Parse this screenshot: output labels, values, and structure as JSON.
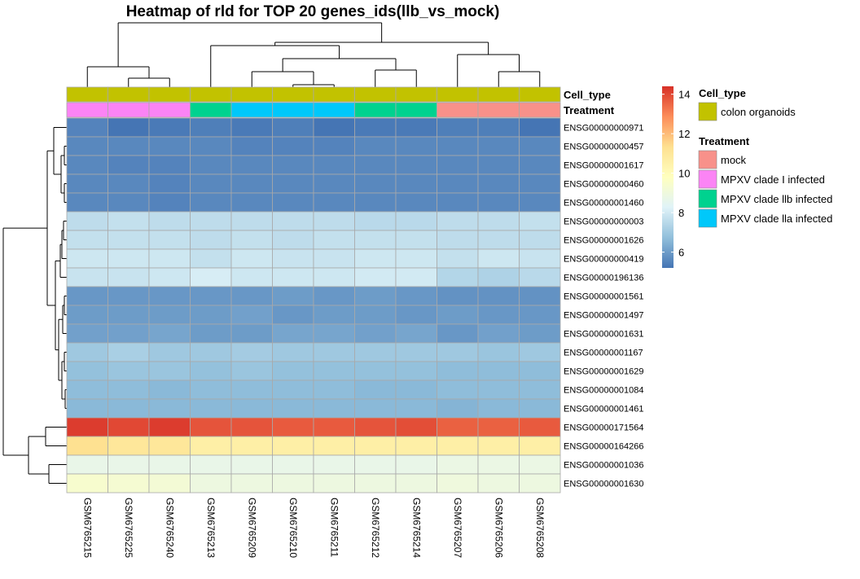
{
  "chart_data": {
    "type": "heatmap",
    "title": "Heatmap of rld for TOP 20 genes_ids(llb_vs_mock)",
    "columns": [
      "GSM6765215",
      "GSM6765225",
      "GSM6765240",
      "GSM6765213",
      "GSM6765209",
      "GSM6765210",
      "GSM6765211",
      "GSM6765212",
      "GSM6765214",
      "GSM6765207",
      "GSM6765206",
      "GSM6765208"
    ],
    "rows": [
      "ENSG00000000971",
      "ENSG00000000457",
      "ENSG00000001617",
      "ENSG00000000460",
      "ENSG00000001460",
      "ENSG00000000003",
      "ENSG00000001626",
      "ENSG00000000419",
      "ENSG00000196136",
      "ENSG00000001561",
      "ENSG00000001497",
      "ENSG00000001631",
      "ENSG00000001167",
      "ENSG00000001629",
      "ENSG00000001084",
      "ENSG00000001461",
      "ENSG00000171564",
      "ENSG00000164266",
      "ENSG00000001036",
      "ENSG00000001630"
    ],
    "values": [
      [
        5.5,
        5.2,
        5.3,
        5.4,
        5.3,
        5.4,
        5.2,
        5.3,
        5.3,
        5.4,
        5.4,
        5.2
      ],
      [
        5.6,
        5.6,
        5.6,
        5.6,
        5.5,
        5.5,
        5.5,
        5.6,
        5.6,
        5.6,
        5.6,
        5.6
      ],
      [
        5.6,
        5.5,
        5.5,
        5.6,
        5.6,
        5.6,
        5.6,
        5.6,
        5.6,
        5.6,
        5.6,
        5.6
      ],
      [
        5.6,
        5.6,
        5.5,
        5.6,
        5.6,
        5.6,
        5.6,
        5.6,
        5.6,
        5.6,
        5.6,
        5.6
      ],
      [
        5.6,
        5.6,
        5.5,
        5.6,
        5.6,
        5.6,
        5.6,
        5.6,
        5.6,
        5.6,
        5.6,
        5.6
      ],
      [
        7.6,
        7.7,
        7.6,
        7.6,
        7.6,
        7.6,
        7.6,
        7.5,
        7.5,
        7.6,
        7.6,
        7.7
      ],
      [
        7.7,
        7.7,
        7.7,
        7.6,
        7.7,
        7.6,
        7.7,
        7.7,
        7.7,
        7.6,
        7.6,
        7.6
      ],
      [
        7.9,
        7.9,
        7.9,
        7.7,
        7.9,
        7.8,
        7.8,
        7.9,
        7.9,
        7.7,
        7.9,
        7.8
      ],
      [
        7.8,
        7.8,
        7.9,
        8.1,
        7.9,
        7.9,
        7.9,
        8.0,
        8.0,
        7.4,
        7.3,
        7.5
      ],
      [
        5.9,
        5.9,
        5.9,
        5.9,
        5.9,
        6.0,
        5.9,
        6.0,
        5.9,
        5.8,
        5.8,
        5.8
      ],
      [
        6.0,
        6.0,
        6.0,
        6.0,
        6.1,
        5.9,
        6.0,
        6.0,
        5.9,
        6.0,
        5.9,
        5.9
      ],
      [
        6.1,
        6.1,
        6.2,
        6.0,
        6.0,
        6.2,
        6.2,
        6.1,
        6.2,
        5.9,
        6.1,
        6.0
      ],
      [
        7.0,
        7.2,
        7.0,
        7.0,
        7.1,
        7.0,
        7.0,
        7.0,
        7.0,
        7.0,
        6.9,
        7.0
      ],
      [
        6.8,
        6.9,
        6.9,
        6.8,
        6.9,
        6.8,
        6.8,
        6.8,
        6.8,
        6.7,
        6.7,
        6.7
      ],
      [
        6.7,
        6.7,
        6.6,
        6.7,
        6.7,
        6.7,
        6.7,
        6.6,
        6.6,
        6.7,
        6.7,
        6.7
      ],
      [
        6.6,
        6.6,
        6.6,
        6.6,
        6.6,
        6.6,
        6.6,
        6.6,
        6.6,
        6.5,
        6.6,
        6.6
      ],
      [
        14.2,
        14.0,
        14.2,
        13.8,
        13.8,
        13.7,
        13.7,
        13.8,
        13.9,
        13.6,
        13.6,
        13.7
      ],
      [
        11.3,
        11.0,
        11.0,
        10.6,
        10.6,
        10.6,
        10.6,
        10.6,
        10.6,
        10.6,
        10.6,
        10.6
      ],
      [
        8.7,
        8.7,
        8.7,
        8.7,
        8.7,
        8.7,
        8.7,
        8.7,
        8.7,
        8.8,
        8.8,
        8.8
      ],
      [
        9.4,
        9.3,
        9.2,
        8.9,
        8.9,
        8.9,
        8.9,
        8.9,
        8.9,
        9.0,
        8.9,
        8.9
      ]
    ],
    "colorbar": {
      "min": 5.2,
      "max": 14.4,
      "ticks": [
        6,
        8,
        10,
        12,
        14
      ]
    },
    "annotations": {
      "labels": [
        "Cell_type",
        "Treatment"
      ],
      "cell_type": [
        "colon organoids",
        "colon organoids",
        "colon organoids",
        "colon organoids",
        "colon organoids",
        "colon organoids",
        "colon organoids",
        "colon organoids",
        "colon organoids",
        "colon organoids",
        "colon organoids",
        "colon organoids"
      ],
      "treatment": [
        "MPXV clade I infected",
        "MPXV clade I infected",
        "MPXV clade I infected",
        "MPXV clade llb infected",
        "MPXV clade lla infected",
        "MPXV clade lla infected",
        "MPXV clade lla infected",
        "MPXV clade llb infected",
        "MPXV clade llb infected",
        "mock",
        "mock",
        "mock"
      ]
    },
    "legend": {
      "cell_type_title": "Cell_type",
      "cell_type_items": [
        {
          "label": "colon organoids",
          "color": "#C2C200"
        }
      ],
      "treatment_title": "Treatment",
      "treatment_items": [
        {
          "label": "mock",
          "color": "#F8918A"
        },
        {
          "label": "MPXV clade I infected",
          "color": "#FB84F5"
        },
        {
          "label": "MPXV clade llb infected",
          "color": "#00D28F"
        },
        {
          "label": "MPXV clade lla infected",
          "color": "#00C8FA"
        }
      ]
    },
    "colors": {
      "scale": [
        "#4575B4",
        "#91BFDB",
        "#E0F3F8",
        "#FFFFBF",
        "#FEE090",
        "#FC8D59",
        "#D73027"
      ],
      "cell_border": "#A9A9A9"
    }
  }
}
